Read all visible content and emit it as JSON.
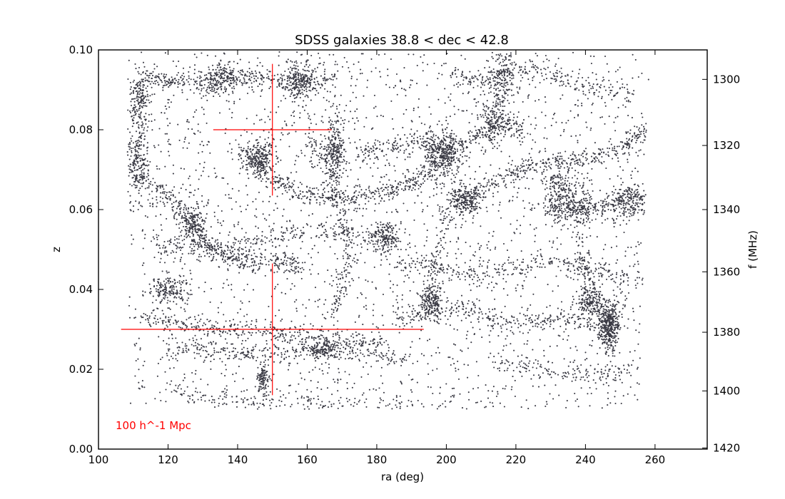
{
  "chart_data": {
    "type": "scatter",
    "title": "SDSS galaxies 38.8 < dec < 42.8",
    "xlabel": "ra (deg)",
    "ylabel": "z",
    "ylabel_right": "f (MHz)",
    "xlim": [
      100,
      275
    ],
    "ylim": [
      0.0,
      0.1
    ],
    "x_ticks": [
      100,
      120,
      140,
      160,
      180,
      200,
      220,
      240,
      260
    ],
    "y_ticks": [
      0.0,
      0.02,
      0.04,
      0.06,
      0.08,
      0.1
    ],
    "x_tick_labels": [
      "100",
      "120",
      "140",
      "160",
      "180",
      "200",
      "220",
      "240",
      "260"
    ],
    "y_tick_labels": [
      "0.00",
      "0.02",
      "0.04",
      "0.06",
      "0.08",
      "0.10"
    ],
    "right_axis": {
      "label": "f (MHz)",
      "rest_frequency_mhz": 1420.4,
      "ticks_mhz": [
        1300,
        1320,
        1340,
        1360,
        1380,
        1400,
        1420
      ],
      "tick_labels": [
        "1300",
        "1320",
        "1340",
        "1360",
        "1380",
        "1400",
        "1420"
      ]
    },
    "grid": false,
    "marker_color": "#3a3a44",
    "scale_bar_color": "#ff0000",
    "scale_bar_label": "100 h^-1 Mpc",
    "scale_bars": [
      {
        "center": {
          "ra": 150,
          "z": 0.08
        },
        "ra_range": [
          133,
          167
        ],
        "z_range": [
          0.0635,
          0.0965
        ]
      },
      {
        "center": {
          "ra": 150,
          "z": 0.03
        },
        "ra_range": [
          106.5,
          193.5
        ],
        "z_range": [
          0.0135,
          0.0465
        ]
      }
    ],
    "density_clusters": [
      {
        "ra": 247,
        "z": 0.031,
        "spread_ra": 1.5,
        "spread_z": 0.003,
        "weight": 1.6
      },
      {
        "ra": 241,
        "z": 0.037,
        "spread_ra": 2.0,
        "spread_z": 0.002,
        "weight": 0.7
      },
      {
        "ra": 168,
        "z": 0.075,
        "spread_ra": 1.6,
        "spread_z": 0.004,
        "weight": 1.2
      },
      {
        "ra": 146,
        "z": 0.073,
        "spread_ra": 2.5,
        "spread_z": 0.002,
        "weight": 1.0
      },
      {
        "ra": 158,
        "z": 0.092,
        "spread_ra": 2.5,
        "spread_z": 0.003,
        "weight": 1.0
      },
      {
        "ra": 135,
        "z": 0.093,
        "spread_ra": 3.0,
        "spread_z": 0.002,
        "weight": 0.8
      },
      {
        "ra": 112,
        "z": 0.087,
        "spread_ra": 1.5,
        "spread_z": 0.004,
        "weight": 0.9
      },
      {
        "ra": 111,
        "z": 0.072,
        "spread_ra": 1.8,
        "spread_z": 0.004,
        "weight": 0.9
      },
      {
        "ra": 199,
        "z": 0.074,
        "spread_ra": 3.0,
        "spread_z": 0.003,
        "weight": 1.2
      },
      {
        "ra": 205,
        "z": 0.062,
        "spread_ra": 2.5,
        "spread_z": 0.002,
        "weight": 1.0
      },
      {
        "ra": 216,
        "z": 0.092,
        "spread_ra": 2.0,
        "spread_z": 0.004,
        "weight": 0.8
      },
      {
        "ra": 213,
        "z": 0.082,
        "spread_ra": 2.0,
        "spread_z": 0.003,
        "weight": 0.7
      },
      {
        "ra": 237,
        "z": 0.061,
        "spread_ra": 3.0,
        "spread_z": 0.003,
        "weight": 1.0
      },
      {
        "ra": 252,
        "z": 0.062,
        "spread_ra": 3.0,
        "spread_z": 0.002,
        "weight": 0.7
      },
      {
        "ra": 182,
        "z": 0.053,
        "spread_ra": 2.5,
        "spread_z": 0.002,
        "weight": 0.7
      },
      {
        "ra": 196,
        "z": 0.037,
        "spread_ra": 1.5,
        "spread_z": 0.002,
        "weight": 0.7
      },
      {
        "ra": 147,
        "z": 0.017,
        "spread_ra": 1.0,
        "spread_z": 0.002,
        "weight": 0.5
      },
      {
        "ra": 164,
        "z": 0.025,
        "spread_ra": 3.0,
        "spread_z": 0.001,
        "weight": 0.6
      },
      {
        "ra": 127,
        "z": 0.056,
        "spread_ra": 2.5,
        "spread_z": 0.003,
        "weight": 0.7
      },
      {
        "ra": 120,
        "z": 0.04,
        "spread_ra": 3.0,
        "spread_z": 0.002,
        "weight": 0.7
      },
      {
        "ra": 232,
        "z": 0.065,
        "spread_ra": 2.0,
        "spread_z": 0.003,
        "weight": 0.6
      }
    ],
    "filaments": [
      {
        "path": [
          [
            112,
            0.068
          ],
          [
            122,
            0.062
          ],
          [
            128,
            0.055
          ],
          [
            133,
            0.05
          ],
          [
            140,
            0.047
          ],
          [
            150,
            0.047
          ],
          [
            158,
            0.046
          ]
        ],
        "weight": 1.0
      },
      {
        "path": [
          [
            143,
            0.073
          ],
          [
            150,
            0.068
          ],
          [
            158,
            0.064
          ],
          [
            168,
            0.063
          ],
          [
            178,
            0.064
          ],
          [
            188,
            0.066
          ],
          [
            196,
            0.07
          ],
          [
            202,
            0.073
          ]
        ],
        "weight": 1.0
      },
      {
        "path": [
          [
            205,
            0.062
          ],
          [
            212,
            0.066
          ],
          [
            222,
            0.07
          ],
          [
            232,
            0.072
          ],
          [
            242,
            0.073
          ],
          [
            252,
            0.076
          ],
          [
            258,
            0.08
          ]
        ],
        "weight": 0.9
      },
      {
        "path": [
          [
            228,
            0.06
          ],
          [
            236,
            0.06
          ],
          [
            244,
            0.06
          ],
          [
            252,
            0.063
          ],
          [
            258,
            0.062
          ]
        ],
        "weight": 0.7
      },
      {
        "path": [
          [
            174,
            0.074
          ],
          [
            184,
            0.076
          ],
          [
            194,
            0.077
          ],
          [
            200,
            0.074
          ],
          [
            208,
            0.078
          ],
          [
            216,
            0.082
          ],
          [
            222,
            0.08
          ]
        ],
        "weight": 0.8
      },
      {
        "path": [
          [
            160,
            0.08
          ],
          [
            165,
            0.07
          ],
          [
            170,
            0.06
          ],
          [
            172,
            0.05
          ],
          [
            170,
            0.04
          ],
          [
            166,
            0.033
          ]
        ],
        "weight": 0.6
      },
      {
        "path": [
          [
            113,
            0.094
          ],
          [
            120,
            0.092
          ],
          [
            128,
            0.092
          ],
          [
            138,
            0.093
          ],
          [
            148,
            0.093
          ],
          [
            158,
            0.092
          ],
          [
            168,
            0.093
          ]
        ],
        "weight": 0.8
      },
      {
        "path": [
          [
            200,
            0.094
          ],
          [
            210,
            0.092
          ],
          [
            220,
            0.095
          ],
          [
            232,
            0.093
          ],
          [
            242,
            0.09
          ],
          [
            254,
            0.088
          ]
        ],
        "weight": 0.7
      },
      {
        "path": [
          [
            112,
            0.033
          ],
          [
            122,
            0.032
          ],
          [
            132,
            0.03
          ],
          [
            142,
            0.03
          ],
          [
            152,
            0.029
          ],
          [
            162,
            0.028
          ],
          [
            172,
            0.027
          ],
          [
            182,
            0.027
          ]
        ],
        "weight": 0.7
      },
      {
        "path": [
          [
            122,
            0.025
          ],
          [
            132,
            0.025
          ],
          [
            142,
            0.024
          ],
          [
            152,
            0.024
          ],
          [
            165,
            0.025
          ],
          [
            175,
            0.024
          ],
          [
            190,
            0.023
          ]
        ],
        "weight": 0.7
      },
      {
        "path": [
          [
            186,
            0.034
          ],
          [
            196,
            0.034
          ],
          [
            206,
            0.035
          ],
          [
            216,
            0.032
          ],
          [
            226,
            0.032
          ],
          [
            236,
            0.033
          ],
          [
            246,
            0.03
          ]
        ],
        "weight": 0.7
      },
      {
        "path": [
          [
            215,
            0.022
          ],
          [
            225,
            0.02
          ],
          [
            235,
            0.019
          ],
          [
            245,
            0.019
          ],
          [
            252,
            0.019
          ]
        ],
        "weight": 0.5
      },
      {
        "path": [
          [
            116,
            0.052
          ],
          [
            126,
            0.05
          ],
          [
            136,
            0.05
          ],
          [
            146,
            0.052
          ],
          [
            156,
            0.054
          ],
          [
            166,
            0.055
          ],
          [
            176,
            0.053
          ],
          [
            186,
            0.052
          ]
        ],
        "weight": 0.6
      },
      {
        "path": [
          [
            186,
            0.047
          ],
          [
            196,
            0.046
          ],
          [
            206,
            0.044
          ],
          [
            216,
            0.045
          ],
          [
            226,
            0.047
          ],
          [
            236,
            0.046
          ],
          [
            246,
            0.044
          ],
          [
            256,
            0.042
          ]
        ],
        "weight": 0.6
      },
      {
        "path": [
          [
            200,
            0.06
          ],
          [
            198,
            0.05
          ],
          [
            195,
            0.04
          ],
          [
            193,
            0.032
          ]
        ],
        "weight": 0.5
      },
      {
        "path": [
          [
            238,
            0.055
          ],
          [
            240,
            0.045
          ],
          [
            243,
            0.038
          ],
          [
            247,
            0.031
          ]
        ],
        "weight": 0.6
      },
      {
        "path": [
          [
            120,
            0.015
          ],
          [
            130,
            0.013
          ],
          [
            140,
            0.012
          ],
          [
            150,
            0.012
          ],
          [
            162,
            0.012
          ],
          [
            175,
            0.011
          ],
          [
            190,
            0.011
          ]
        ],
        "weight": 0.4
      }
    ],
    "n_background_points": 2600
  }
}
